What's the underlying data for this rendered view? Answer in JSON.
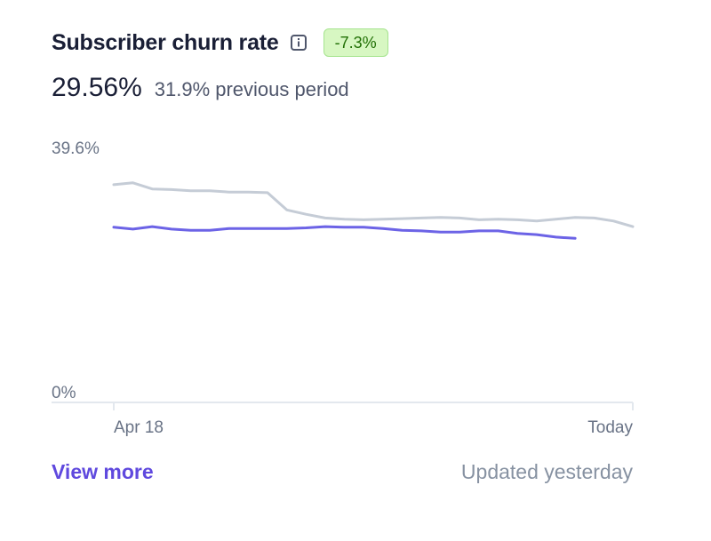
{
  "header": {
    "title": "Subscriber churn rate",
    "info_icon": "info-icon",
    "badge": "-7.3%",
    "badge_color": "#217005"
  },
  "summary": {
    "current_value": "29.56%",
    "previous_value": "31.9% previous period"
  },
  "footer": {
    "view_more_label": "View more",
    "updated_label": "Updated yesterday"
  },
  "colors": {
    "current_series": "#6c63e6",
    "previous_series": "#c5ccd6",
    "axis": "#e3e8ee",
    "accent_link": "#5f49de"
  },
  "chart_data": {
    "type": "line",
    "ylim": [
      0,
      39.6
    ],
    "ytick_labels": [
      "39.6%",
      "0%"
    ],
    "yticks": [
      39.6,
      0
    ],
    "xtick_labels": [
      "Apr 18",
      "Today"
    ],
    "grid": false,
    "series": [
      {
        "role": "previous",
        "values": [
          35.3,
          35.6,
          34.6,
          34.5,
          34.3,
          34.3,
          34.1,
          34.1,
          34.0,
          31.2,
          30.5,
          29.9,
          29.7,
          29.6,
          29.7,
          29.8,
          29.9,
          30.0,
          29.9,
          29.6,
          29.7,
          29.6,
          29.4,
          29.7,
          30.0,
          29.9,
          29.4,
          28.5
        ]
      },
      {
        "role": "current",
        "values": [
          28.4,
          28.1,
          28.5,
          28.1,
          27.9,
          27.9,
          28.2,
          28.2,
          28.2,
          28.2,
          28.3,
          28.5,
          28.4,
          28.4,
          28.2,
          27.9,
          27.8,
          27.6,
          27.6,
          27.8,
          27.8,
          27.4,
          27.2,
          26.8,
          26.6
        ]
      }
    ]
  }
}
